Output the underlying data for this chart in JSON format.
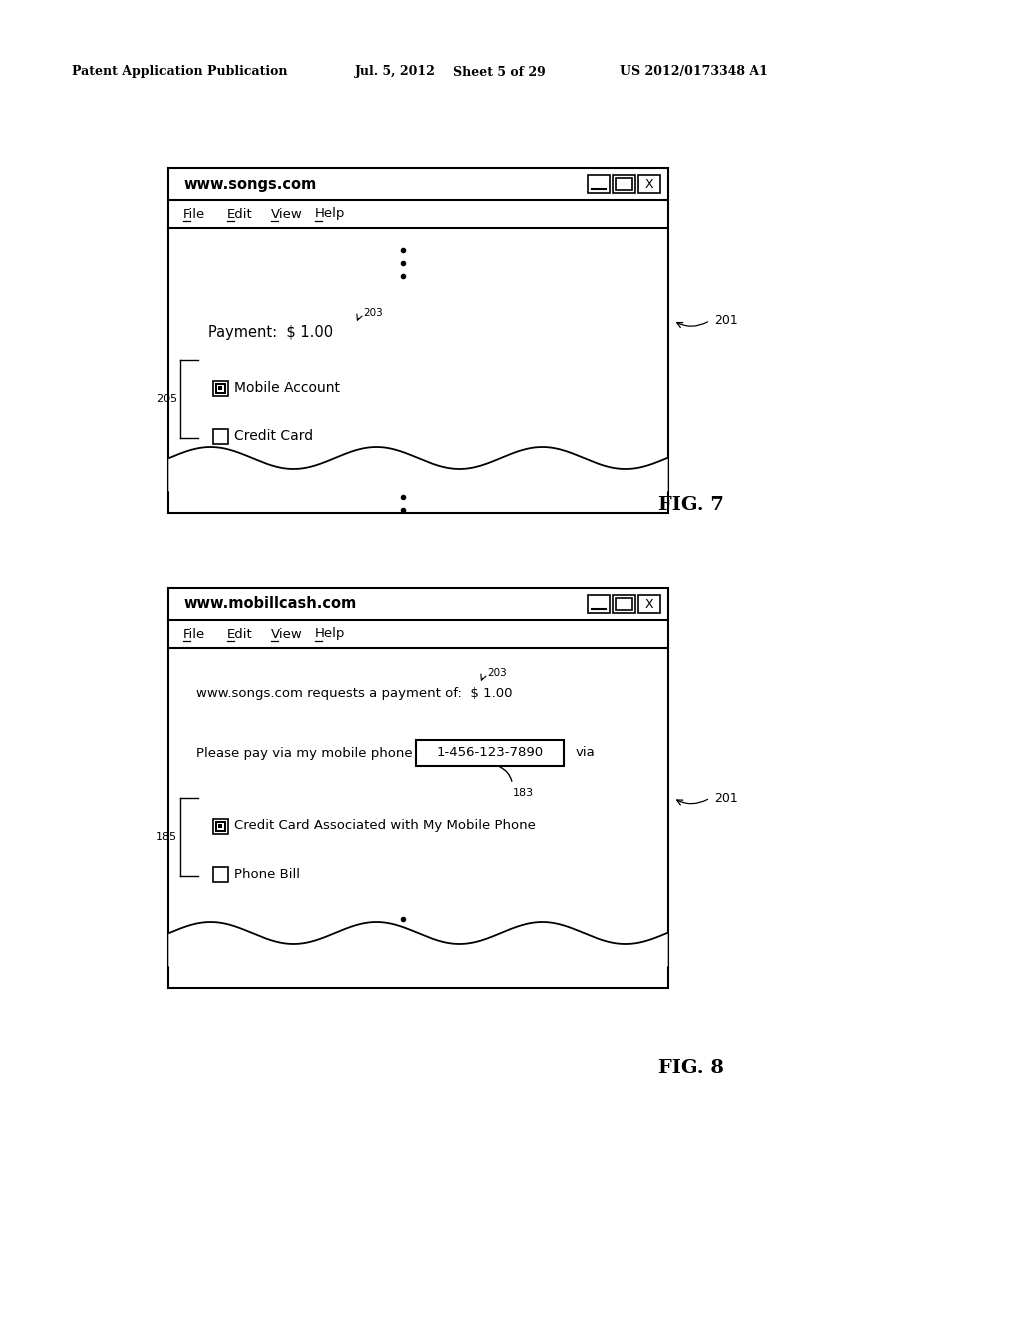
{
  "bg_color": "#ffffff",
  "header_text": "Patent Application Publication",
  "header_date": "Jul. 5, 2012",
  "header_sheet": "Sheet 5 of 29",
  "header_patent": "US 2012/0173348 A1",
  "fig7": {
    "url": "www.songs.com",
    "menu_items": [
      "File",
      "Edit",
      "View",
      "Help"
    ],
    "payment_text": "Payment:  $ 1.00",
    "payment_ref": "203",
    "radio1_label": "Mobile Account",
    "radio1_filled": true,
    "radio2_label": "Credit Card",
    "radio2_filled": false,
    "ref_205": "205",
    "ref_201": "201",
    "fig_label": "FIG. 7"
  },
  "fig8": {
    "url": "www.mobillcash.com",
    "menu_items": [
      "File",
      "Edit",
      "View",
      "Help"
    ],
    "request_text": "www.songs.com requests a payment of:  $ 1.00",
    "request_ref": "203",
    "phone_label": "Please pay via my mobile phone",
    "phone_number": "1-456-123-7890",
    "via_text": "via",
    "ref_183": "183",
    "radio1_label": "Credit Card Associated with My Mobile Phone",
    "radio1_filled": true,
    "radio2_label": "Phone Bill",
    "radio2_filled": false,
    "ref_185": "185",
    "ref_201": "201",
    "fig_label": "FIG. 8"
  }
}
